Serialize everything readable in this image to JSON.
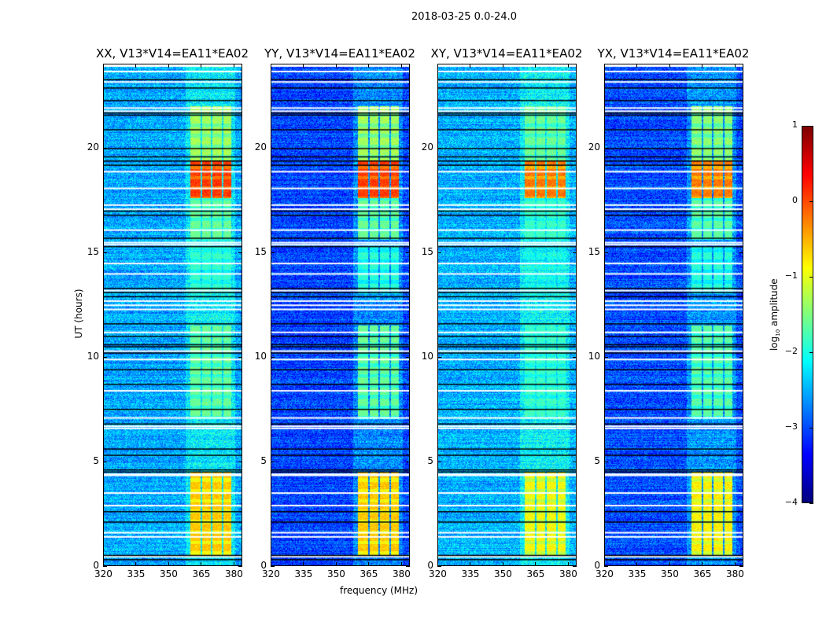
{
  "chart_data": {
    "type": "heatmap",
    "title": "2018-03-25 0.0-24.0",
    "xlabel": "frequency (MHz)",
    "ylabel": "UT (hours)",
    "xlim": [
      320,
      384
    ],
    "ylim": [
      0,
      24
    ],
    "xticks": [
      320,
      335,
      350,
      365,
      380
    ],
    "yticks": [
      0,
      5,
      10,
      15,
      20
    ],
    "colorbar": {
      "label": "log10 amplitude",
      "label_main": "log",
      "label_sub": "10",
      "label_tail": " amplitude",
      "range": [
        -4,
        1
      ],
      "ticks": [
        1,
        0,
        -1,
        -2,
        -3,
        -4
      ],
      "tick_labels": [
        "1",
        "0",
        "−1",
        "−2",
        "−3",
        "−4"
      ],
      "colormap": "jet"
    },
    "tick_labels_y": [
      "0",
      "5",
      "10",
      "15",
      "20"
    ],
    "tick_labels_x": [
      "320",
      "335",
      "350",
      "365",
      "380"
    ],
    "band_columns_mhz": [
      [
        360.4,
        365.1
      ],
      [
        365.8,
        369.7
      ],
      [
        370.4,
        374.8
      ],
      [
        375.5,
        379.4
      ]
    ],
    "active_periods": [
      {
        "t": [
          0.5,
          4.5
        ],
        "level": -0.6
      },
      {
        "t": [
          17.6,
          19.4
        ],
        "level": 0.1
      },
      {
        "t": [
          19.4,
          22.0
        ],
        "level": -1.3
      },
      {
        "t": [
          7.0,
          11.5
        ],
        "level": -1.6
      },
      {
        "t": [
          13.0,
          15.3
        ],
        "level": -1.9
      },
      {
        "t": [
          15.6,
          17.6
        ],
        "level": -1.6
      }
    ],
    "flagged_white_hours": [
      23.7,
      23.2,
      21.8,
      21.95,
      18.9,
      18.1,
      17.3,
      17.1,
      16.1,
      15.4,
      15.5,
      14.5,
      14.0,
      13.2,
      12.7,
      12.5,
      12.3,
      11.2,
      10.3,
      9.9,
      8.4,
      7.1,
      6.7,
      6.6,
      4.4,
      4.35,
      3.5,
      2.9,
      1.6,
      1.4,
      0.45
    ],
    "flagged_black_hours": [
      23.3,
      22.9,
      22.3,
      21.7,
      21.6,
      20.9,
      20.0,
      19.6,
      19.4,
      19.2,
      17.0,
      16.8,
      15.7,
      15.3,
      13.3,
      13.1,
      12.9,
      11.6,
      11.0,
      10.6,
      10.5,
      10.2,
      9.4,
      8.7,
      7.5,
      6.8,
      5.6,
      5.3,
      4.6,
      4.5,
      2.6,
      2.1,
      0.5,
      0.3
    ],
    "panels": [
      {
        "title": "XX, V13*V14=EA11*EA02",
        "base_level": -2.55,
        "band_gain": 1.0
      },
      {
        "title": "YY, V13*V14=EA11*EA02",
        "base_level": -3.05,
        "band_gain": 1.0
      },
      {
        "title": "XY, V13*V14=EA11*EA02",
        "base_level": -2.5,
        "band_gain": 0.98
      },
      {
        "title": "YX, V13*V14=EA11*EA02",
        "base_level": -3.0,
        "band_gain": 0.85
      }
    ]
  }
}
